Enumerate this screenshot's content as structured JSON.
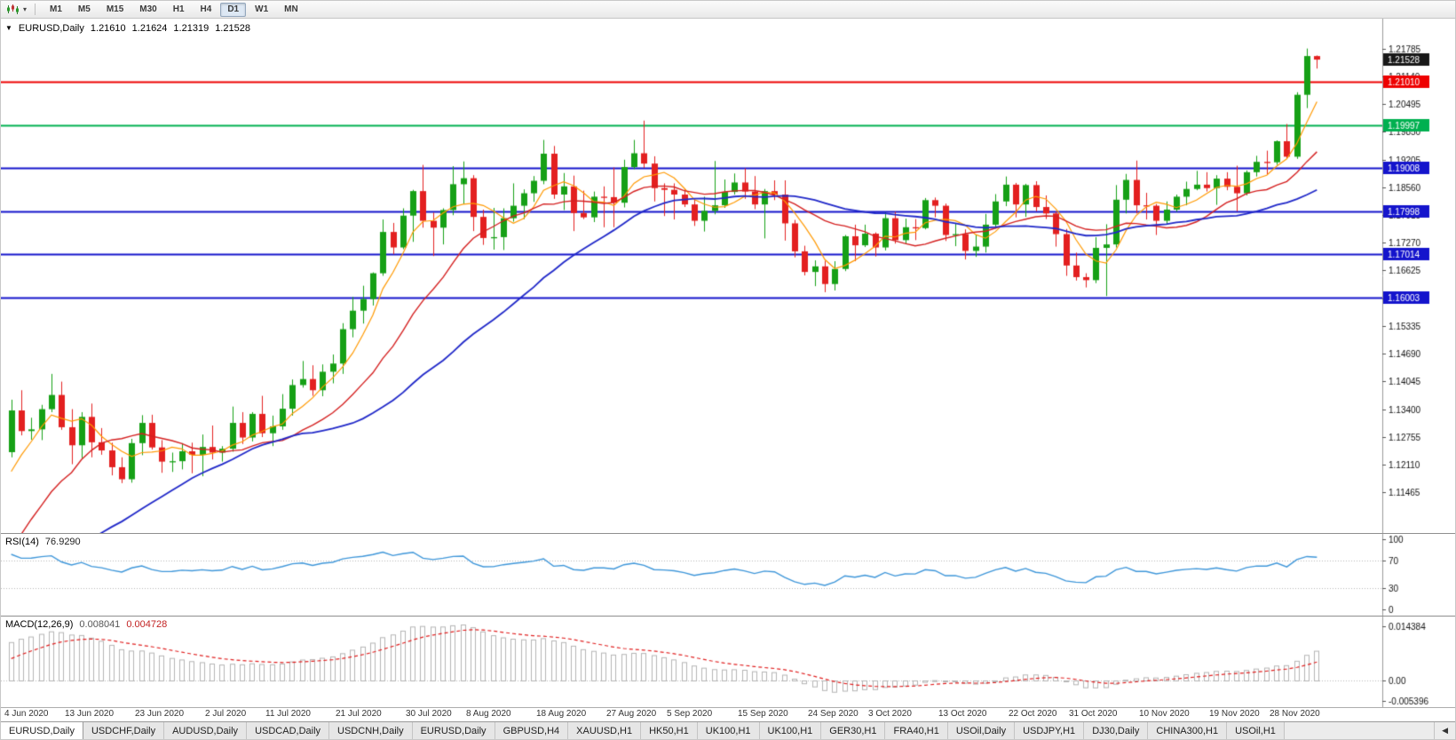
{
  "toolbar": {
    "period_buttons": [
      "M1",
      "M5",
      "M15",
      "M30",
      "H1",
      "H4",
      "D1",
      "W1",
      "MN"
    ],
    "active_period": "D1"
  },
  "chart_header": {
    "symbol": "EURUSD,Daily",
    "open": "1.21610",
    "high": "1.21624",
    "low": "1.21319",
    "close": "1.21528"
  },
  "rsi_panel": {
    "label": "RSI(14)",
    "value": "76.9290",
    "value_color": "#222222",
    "axis_labels": [
      100,
      70,
      30,
      0
    ],
    "line_color": "#3e96d9"
  },
  "macd_panel": {
    "label": "MACD(12,26,9)",
    "main_value": "0.008041",
    "signal_value": "0.004728",
    "main_value_color": "#555555",
    "signal_value_color": "#c22222",
    "axis_labels": [
      "0.014384",
      "0.00",
      "-0.005396"
    ],
    "histogram_color": "#b4b4b4",
    "signal_color": "#e02020"
  },
  "tab_bar": {
    "scroll_left_glyph": "◀",
    "tabs": [
      {
        "label": "EURUSD,Daily",
        "active": true
      },
      {
        "label": "USDCHF,Daily",
        "active": false
      },
      {
        "label": "AUDUSD,Daily",
        "active": false
      },
      {
        "label": "USDCAD,Daily",
        "active": false
      },
      {
        "label": "USDCNH,Daily",
        "active": false
      },
      {
        "label": "EURUSD,Daily",
        "active": false
      },
      {
        "label": "GBPUSD,H4",
        "active": false
      },
      {
        "label": "XAUUSD,H1",
        "active": false
      },
      {
        "label": "HK50,H1",
        "active": false
      },
      {
        "label": "UK100,H1",
        "active": false
      },
      {
        "label": "UK100,H1",
        "active": false
      },
      {
        "label": "GER30,H1",
        "active": false
      },
      {
        "label": "FRA40,H1",
        "active": false
      },
      {
        "label": "USOil,Daily",
        "active": false
      },
      {
        "label": "USDJPY,H1",
        "active": false
      },
      {
        "label": "DJ30,Daily",
        "active": false
      },
      {
        "label": "CHINA300,H1",
        "active": false
      },
      {
        "label": "USOil,H1",
        "active": false
      }
    ]
  },
  "chart_data": {
    "type": "candlestick",
    "symbol": "EURUSD",
    "timeframe": "Daily",
    "bull_color": "#16a016",
    "bear_color": "#e32020",
    "price_range": {
      "top": 1.2248,
      "bottom": 1.1052
    },
    "price_axis_labels": [
      "1.21785",
      "1.21140",
      "1.20495",
      "1.19850",
      "1.19205",
      "1.18560",
      "1.17915",
      "1.17270",
      "1.16625",
      "1.15980",
      "1.15335",
      "1.14690",
      "1.14045",
      "1.13400",
      "1.12755",
      "1.12110",
      "1.11465"
    ],
    "x_labels": [
      {
        "text": "4 Jun 2020",
        "i": 0
      },
      {
        "text": "13 Jun 2020",
        "i": 6
      },
      {
        "text": "23 Jun 2020",
        "i": 13
      },
      {
        "text": "2 Jul 2020",
        "i": 20
      },
      {
        "text": "11 Jul 2020",
        "i": 26
      },
      {
        "text": "21 Jul 2020",
        "i": 33
      },
      {
        "text": "30 Jul 2020",
        "i": 40
      },
      {
        "text": "8 Aug 2020",
        "i": 46
      },
      {
        "text": "18 Aug 2020",
        "i": 53
      },
      {
        "text": "27 Aug 2020",
        "i": 60
      },
      {
        "text": "5 Sep 2020",
        "i": 66
      },
      {
        "text": "15 Sep 2020",
        "i": 73
      },
      {
        "text": "24 Sep 2020",
        "i": 80
      },
      {
        "text": "3 Oct 2020",
        "i": 86
      },
      {
        "text": "13 Oct 2020",
        "i": 93
      },
      {
        "text": "22 Oct 2020",
        "i": 100
      },
      {
        "text": "31 Oct 2020",
        "i": 106
      },
      {
        "text": "10 Nov 2020",
        "i": 113
      },
      {
        "text": "19 Nov 2020",
        "i": 120
      },
      {
        "text": "28 Nov 2020",
        "i": 126
      }
    ],
    "h_lines": [
      {
        "price": 1.2101,
        "label": "1.21010",
        "color": "#ee0000",
        "width": 2
      },
      {
        "price": 1.19997,
        "label": "1.19997",
        "color": "#00b050",
        "width": 2
      },
      {
        "price": 1.19008,
        "label": "1.19008",
        "color": "#1414cc",
        "width": 2
      },
      {
        "price": 1.17998,
        "label": "1.17998",
        "color": "#1414cc",
        "width": 2
      },
      {
        "price": 1.17014,
        "label": "1.17014",
        "color": "#1414cc",
        "width": 2
      },
      {
        "price": 1.16003,
        "label": "1.16003",
        "color": "#1414cc",
        "width": 2
      }
    ],
    "current_price": {
      "value": 1.21528,
      "label": "1.21528",
      "tag_color": "#181818"
    },
    "moving_averages": [
      {
        "period": 5,
        "color": "#ff9900",
        "width": 1.2
      },
      {
        "period": 14,
        "color": "#d42020",
        "width": 1.4
      },
      {
        "period": 30,
        "color": "#2028c8",
        "width": 1.8
      }
    ],
    "warmup_closes": [
      1.086,
      1.0902,
      1.088,
      1.0915,
      1.0891,
      1.0867,
      1.0812,
      1.0858,
      1.087,
      1.0833,
      1.0778,
      1.0862,
      1.0875,
      1.0902,
      1.0868,
      1.082,
      1.0787,
      1.0755,
      1.0722,
      1.0765,
      1.084,
      1.08,
      1.0843,
      1.0795,
      1.0805,
      1.0818,
      1.0867,
      1.081,
      1.0797,
      1.0789,
      1.0818,
      1.0805,
      1.0898,
      1.092,
      1.0951,
      1.098,
      1.0898,
      1.096,
      1.1013,
      1.1099,
      1.1134,
      1.1172,
      1.1233
    ],
    "candles": [
      [
        1.124,
        1.1362,
        1.1228,
        1.1337
      ],
      [
        1.1337,
        1.1384,
        1.1279,
        1.1289
      ],
      [
        1.1289,
        1.132,
        1.1269,
        1.1293
      ],
      [
        1.1293,
        1.135,
        1.1268,
        1.134
      ],
      [
        1.134,
        1.1422,
        1.1333,
        1.1373
      ],
      [
        1.1373,
        1.1404,
        1.1292,
        1.1298
      ],
      [
        1.1298,
        1.134,
        1.1212,
        1.1256
      ],
      [
        1.1256,
        1.1333,
        1.1226,
        1.1322
      ],
      [
        1.1322,
        1.1353,
        1.1228,
        1.1263
      ],
      [
        1.1263,
        1.1296,
        1.1234,
        1.1244
      ],
      [
        1.1244,
        1.1262,
        1.1186,
        1.1205
      ],
      [
        1.1205,
        1.1228,
        1.1168,
        1.1177
      ],
      [
        1.1177,
        1.1271,
        1.1169,
        1.1261
      ],
      [
        1.1261,
        1.1326,
        1.1233,
        1.1308
      ],
      [
        1.1308,
        1.1327,
        1.1246,
        1.1251
      ],
      [
        1.1251,
        1.1268,
        1.1192,
        1.1218
      ],
      [
        1.1218,
        1.1239,
        1.1194,
        1.1219
      ],
      [
        1.1219,
        1.1261,
        1.12,
        1.1242
      ],
      [
        1.1242,
        1.1262,
        1.1191,
        1.1234
      ],
      [
        1.1234,
        1.1281,
        1.1184,
        1.1252
      ],
      [
        1.1252,
        1.1302,
        1.1223,
        1.1239
      ],
      [
        1.1239,
        1.1254,
        1.1218,
        1.1248
      ],
      [
        1.1248,
        1.1346,
        1.1241,
        1.1308
      ],
      [
        1.1308,
        1.1333,
        1.1259,
        1.1274
      ],
      [
        1.1274,
        1.1333,
        1.1265,
        1.1329
      ],
      [
        1.1329,
        1.1371,
        1.1275,
        1.1284
      ],
      [
        1.1284,
        1.1325,
        1.1254,
        1.13
      ],
      [
        1.13,
        1.1375,
        1.1292,
        1.1341
      ],
      [
        1.1341,
        1.1409,
        1.1325,
        1.1396
      ],
      [
        1.1396,
        1.1452,
        1.139,
        1.141
      ],
      [
        1.141,
        1.1442,
        1.1371,
        1.1384
      ],
      [
        1.1384,
        1.1444,
        1.137,
        1.1427
      ],
      [
        1.1427,
        1.1467,
        1.14,
        1.1446
      ],
      [
        1.1446,
        1.154,
        1.1422,
        1.1526
      ],
      [
        1.1526,
        1.1601,
        1.1507,
        1.1569
      ],
      [
        1.1569,
        1.1627,
        1.1539,
        1.1596
      ],
      [
        1.1596,
        1.1658,
        1.1581,
        1.1656
      ],
      [
        1.1656,
        1.1781,
        1.165,
        1.1752
      ],
      [
        1.1752,
        1.1773,
        1.17,
        1.1716
      ],
      [
        1.1716,
        1.1807,
        1.1712,
        1.179
      ],
      [
        1.179,
        1.185,
        1.1729,
        1.1847
      ],
      [
        1.1847,
        1.1908,
        1.1762,
        1.1778
      ],
      [
        1.1778,
        1.1797,
        1.1696,
        1.1762
      ],
      [
        1.1762,
        1.1807,
        1.1723,
        1.1803
      ],
      [
        1.1803,
        1.1905,
        1.1791,
        1.1863
      ],
      [
        1.1863,
        1.1916,
        1.1817,
        1.1877
      ],
      [
        1.1877,
        1.1884,
        1.1754,
        1.1787
      ],
      [
        1.1787,
        1.1804,
        1.1722,
        1.1738
      ],
      [
        1.1738,
        1.1808,
        1.1711,
        1.174
      ],
      [
        1.174,
        1.1807,
        1.171,
        1.1784
      ],
      [
        1.1784,
        1.1865,
        1.1776,
        1.1813
      ],
      [
        1.1813,
        1.1851,
        1.1782,
        1.1842
      ],
      [
        1.1842,
        1.1882,
        1.1822,
        1.1871
      ],
      [
        1.1871,
        1.1966,
        1.1863,
        1.1934
      ],
      [
        1.1934,
        1.1952,
        1.1829,
        1.1839
      ],
      [
        1.1839,
        1.1889,
        1.1803,
        1.1858
      ],
      [
        1.1858,
        1.1883,
        1.1754,
        1.1796
      ],
      [
        1.1796,
        1.1848,
        1.1782,
        1.1786
      ],
      [
        1.1786,
        1.1846,
        1.1775,
        1.1834
      ],
      [
        1.1834,
        1.1858,
        1.1763,
        1.1833
      ],
      [
        1.1833,
        1.1902,
        1.1763,
        1.182
      ],
      [
        1.182,
        1.192,
        1.1809,
        1.1903
      ],
      [
        1.1903,
        1.1966,
        1.1898,
        1.1935
      ],
      [
        1.1935,
        1.2011,
        1.1901,
        1.1911
      ],
      [
        1.1911,
        1.1928,
        1.1823,
        1.1854
      ],
      [
        1.1854,
        1.1865,
        1.1789,
        1.185
      ],
      [
        1.185,
        1.1865,
        1.1781,
        1.1839
      ],
      [
        1.1839,
        1.1852,
        1.181,
        1.1816
      ],
      [
        1.1816,
        1.1827,
        1.1766,
        1.1778
      ],
      [
        1.1778,
        1.1834,
        1.1753,
        1.1801
      ],
      [
        1.1801,
        1.1917,
        1.1793,
        1.1814
      ],
      [
        1.1814,
        1.1874,
        1.1808,
        1.1845
      ],
      [
        1.1845,
        1.1888,
        1.1839,
        1.1867
      ],
      [
        1.1867,
        1.19,
        1.1829,
        1.1846
      ],
      [
        1.1846,
        1.1882,
        1.1805,
        1.1816
      ],
      [
        1.1816,
        1.1852,
        1.1737,
        1.1847
      ],
      [
        1.1847,
        1.1872,
        1.1826,
        1.1839
      ],
      [
        1.1839,
        1.1872,
        1.1732,
        1.1772
      ],
      [
        1.1772,
        1.178,
        1.1693,
        1.1707
      ],
      [
        1.1707,
        1.172,
        1.1651,
        1.1659
      ],
      [
        1.1659,
        1.1686,
        1.1626,
        1.1672
      ],
      [
        1.1672,
        1.1685,
        1.1612,
        1.1631
      ],
      [
        1.1631,
        1.1684,
        1.1616,
        1.1666
      ],
      [
        1.1666,
        1.1745,
        1.1661,
        1.1742
      ],
      [
        1.1742,
        1.1769,
        1.1684,
        1.1721
      ],
      [
        1.1721,
        1.1769,
        1.1717,
        1.1748
      ],
      [
        1.1748,
        1.1751,
        1.1695,
        1.1716
      ],
      [
        1.1716,
        1.1798,
        1.1709,
        1.1784
      ],
      [
        1.1784,
        1.1799,
        1.1725,
        1.1733
      ],
      [
        1.1733,
        1.1783,
        1.1725,
        1.1763
      ],
      [
        1.1763,
        1.1782,
        1.1733,
        1.1761
      ],
      [
        1.1761,
        1.1831,
        1.1758,
        1.1826
      ],
      [
        1.1826,
        1.1832,
        1.1786,
        1.1813
      ],
      [
        1.1813,
        1.1818,
        1.1731,
        1.1745
      ],
      [
        1.1745,
        1.1772,
        1.1719,
        1.1747
      ],
      [
        1.1747,
        1.1758,
        1.1688,
        1.1708
      ],
      [
        1.1708,
        1.1746,
        1.1694,
        1.1718
      ],
      [
        1.1718,
        1.1794,
        1.1704,
        1.1769
      ],
      [
        1.1769,
        1.184,
        1.176,
        1.1823
      ],
      [
        1.1823,
        1.1881,
        1.1812,
        1.1862
      ],
      [
        1.1862,
        1.1866,
        1.1786,
        1.1816
      ],
      [
        1.1816,
        1.1864,
        1.1787,
        1.1861
      ],
      [
        1.1861,
        1.187,
        1.18,
        1.181
      ],
      [
        1.181,
        1.1837,
        1.1782,
        1.1795
      ],
      [
        1.1795,
        1.18,
        1.1718,
        1.1747
      ],
      [
        1.1747,
        1.1759,
        1.165,
        1.1674
      ],
      [
        1.1674,
        1.1704,
        1.1639,
        1.1647
      ],
      [
        1.1647,
        1.1656,
        1.1623,
        1.164
      ],
      [
        1.164,
        1.174,
        1.1633,
        1.1715
      ],
      [
        1.1715,
        1.177,
        1.1603,
        1.1723
      ],
      [
        1.1723,
        1.1861,
        1.1716,
        1.1827
      ],
      [
        1.1827,
        1.1887,
        1.1795,
        1.1873
      ],
      [
        1.1873,
        1.1918,
        1.1795,
        1.1814
      ],
      [
        1.1814,
        1.1843,
        1.1781,
        1.1813
      ],
      [
        1.1813,
        1.1817,
        1.1745,
        1.1778
      ],
      [
        1.1778,
        1.1823,
        1.1771,
        1.1804
      ],
      [
        1.1804,
        1.1839,
        1.1799,
        1.1834
      ],
      [
        1.1834,
        1.1869,
        1.1814,
        1.1852
      ],
      [
        1.1852,
        1.1894,
        1.1849,
        1.1862
      ],
      [
        1.1862,
        1.1891,
        1.1846,
        1.1854
      ],
      [
        1.1854,
        1.1884,
        1.1815,
        1.1876
      ],
      [
        1.1876,
        1.1891,
        1.1849,
        1.1857
      ],
      [
        1.1857,
        1.1906,
        1.18,
        1.1842
      ],
      [
        1.1842,
        1.1895,
        1.1837,
        1.1891
      ],
      [
        1.1891,
        1.1929,
        1.1881,
        1.1915
      ],
      [
        1.1915,
        1.1941,
        1.1886,
        1.1914
      ],
      [
        1.1914,
        1.1965,
        1.1908,
        1.1963
      ],
      [
        1.1963,
        1.2003,
        1.1923,
        1.1927
      ],
      [
        1.1927,
        1.2077,
        1.1922,
        1.2071
      ],
      [
        1.2071,
        1.21785,
        1.204,
        1.2161
      ],
      [
        1.2161,
        1.21624,
        1.21319,
        1.21528
      ]
    ]
  }
}
